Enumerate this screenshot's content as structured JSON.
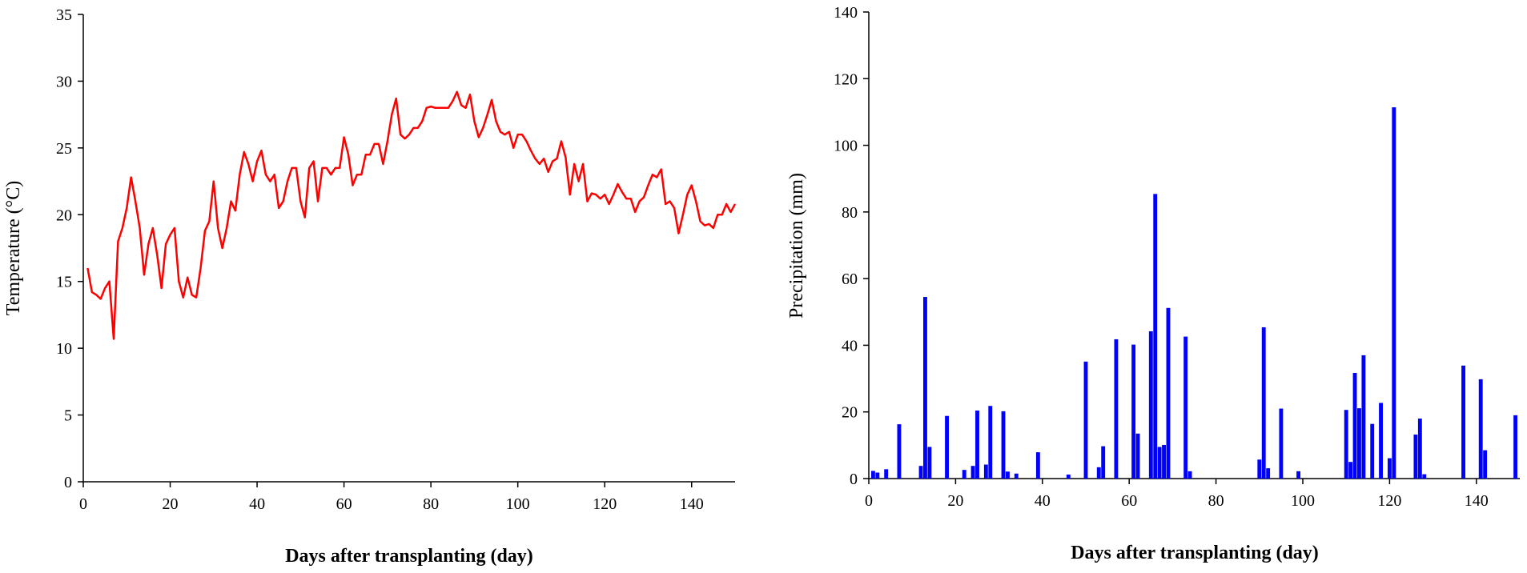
{
  "chart_data": [
    {
      "type": "line",
      "xlabel": "Days after transplanting (day)",
      "ylabel": "Temperature (°C)",
      "xlim": [
        0,
        150
      ],
      "xticks": [
        0,
        20,
        40,
        60,
        80,
        100,
        120,
        140
      ],
      "ylim": [
        0,
        35
      ],
      "yticks": [
        0,
        5,
        10,
        15,
        20,
        25,
        30,
        35
      ],
      "series": [
        {
          "name": "Temperature",
          "color": "#ff0000",
          "x": [
            1,
            2,
            3,
            4,
            5,
            6,
            7,
            8,
            9,
            10,
            11,
            12,
            13,
            14,
            15,
            16,
            17,
            18,
            19,
            20,
            21,
            22,
            23,
            24,
            25,
            26,
            27,
            28,
            29,
            30,
            31,
            32,
            33,
            34,
            35,
            36,
            37,
            38,
            39,
            40,
            41,
            42,
            43,
            44,
            45,
            46,
            47,
            48,
            49,
            50,
            51,
            52,
            53,
            54,
            55,
            56,
            57,
            58,
            59,
            60,
            61,
            62,
            63,
            64,
            65,
            66,
            67,
            68,
            69,
            70,
            71,
            72,
            73,
            74,
            75,
            76,
            77,
            78,
            79,
            80,
            81,
            82,
            83,
            84,
            85,
            86,
            87,
            88,
            89,
            90,
            91,
            92,
            93,
            94,
            95,
            96,
            97,
            98,
            99,
            100,
            101,
            102,
            103,
            104,
            105,
            106,
            107,
            108,
            109,
            110,
            111,
            112,
            113,
            114,
            115,
            116,
            117,
            118,
            119,
            120,
            121,
            122,
            123,
            124,
            125,
            126,
            127,
            128,
            129,
            130,
            131,
            132,
            133,
            134,
            135,
            136,
            137,
            138,
            139,
            140,
            141,
            142,
            143,
            144,
            145,
            146,
            147,
            148,
            149,
            150
          ],
          "values": [
            16,
            14.2,
            14,
            13.7,
            14.5,
            15,
            10.7,
            18,
            19,
            20.5,
            22.8,
            21,
            19,
            15.5,
            17.8,
            19,
            17,
            14.5,
            17.8,
            18.5,
            19,
            15,
            13.8,
            15.3,
            14,
            13.8,
            16,
            18.8,
            19.5,
            22.5,
            19,
            17.5,
            19,
            21,
            20.3,
            23,
            24.7,
            23.8,
            22.5,
            24,
            24.8,
            23,
            22.5,
            23,
            20.5,
            21,
            22.5,
            23.5,
            23.5,
            21,
            19.8,
            23.5,
            24,
            21,
            23.5,
            23.5,
            23,
            23.5,
            23.5,
            25.8,
            24.5,
            22.2,
            23,
            23,
            24.5,
            24.5,
            25.3,
            25.3,
            23.8,
            25.5,
            27.5,
            28.7,
            26,
            25.7,
            26,
            26.5,
            26.5,
            27,
            28,
            28.1,
            28,
            28,
            28,
            28,
            28.5,
            29.2,
            28.2,
            28,
            29,
            27,
            25.8,
            26.5,
            27.5,
            28.6,
            27,
            26.2,
            26,
            26.2,
            25,
            26,
            26,
            25.5,
            24.8,
            24.2,
            23.8,
            24.2,
            23.2,
            24,
            24.2,
            25.5,
            24.3,
            21.5,
            23.8,
            22.5,
            23.8,
            21,
            21.6,
            21.5,
            21.2,
            21.5,
            20.8,
            21.5,
            22.3,
            21.7,
            21.2,
            21.2,
            20.2,
            21,
            21.3,
            22.2,
            23,
            22.8,
            23.4,
            20.8,
            21,
            20.5,
            18.6,
            20,
            21.5,
            22.2,
            21,
            19.5,
            19.2,
            19.3,
            19,
            20,
            20,
            20.8,
            20.2,
            20.8
          ]
        }
      ]
    },
    {
      "type": "bar",
      "xlabel": "Days after transplanting (day)",
      "ylabel": "Precipitation (mm)",
      "xlim": [
        0,
        150
      ],
      "xticks": [
        0,
        20,
        40,
        60,
        80,
        100,
        120,
        140
      ],
      "ylim": [
        0,
        140
      ],
      "yticks": [
        0,
        20,
        40,
        60,
        80,
        100,
        120,
        140
      ],
      "series": [
        {
          "name": "Precipitation",
          "color": "#0000ff",
          "x": [
            1,
            2,
            4,
            7,
            12,
            13,
            14,
            18,
            22,
            24,
            25,
            27,
            28,
            31,
            32,
            34,
            39,
            46,
            50,
            53,
            54,
            57,
            61,
            62,
            65,
            66,
            67,
            68,
            69,
            73,
            74,
            90,
            91,
            92,
            95,
            99,
            110,
            111,
            112,
            113,
            114,
            116,
            118,
            120,
            121,
            126,
            127,
            128,
            137,
            141,
            142,
            149
          ],
          "values": [
            2.3,
            1.8,
            2.8,
            16.3,
            3.8,
            54.5,
            9.5,
            18.8,
            2.6,
            3.8,
            20.4,
            4.2,
            21.8,
            20.2,
            2.1,
            1.5,
            7.9,
            1.2,
            35.1,
            3.4,
            9.7,
            41.8,
            40.2,
            13.5,
            44.2,
            85.4,
            9.5,
            10.1,
            51.2,
            42.6,
            2.2,
            5.7,
            45.4,
            3.1,
            21,
            2.2,
            20.6,
            5,
            31.7,
            21.1,
            37,
            16.4,
            22.7,
            6.1,
            111.4,
            13.2,
            18,
            1.3,
            33.9,
            29.8,
            8.5,
            19
          ]
        }
      ]
    }
  ]
}
